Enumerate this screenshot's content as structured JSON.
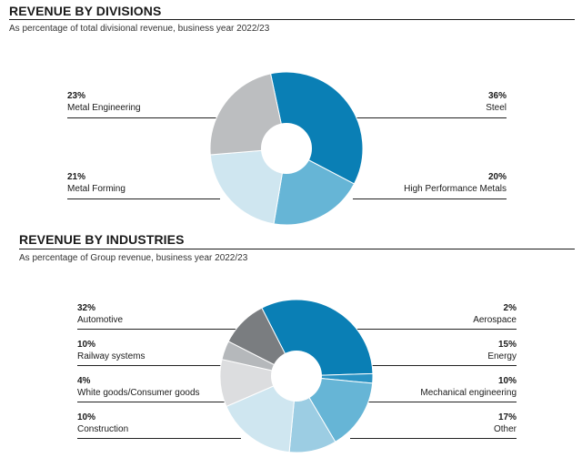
{
  "colors": {
    "text": "#1a1a1a",
    "hole": "#ffffff",
    "dark_blue": "#0a7fb5",
    "mid_blue": "#66b5d6",
    "light_blue": "#cfe6f0",
    "dark_gray": "#7a7d80",
    "mid_gray": "#b5b8bb",
    "light_gray": "#dcdddf"
  },
  "chart_data": [
    {
      "type": "pie",
      "variant": "donut",
      "title": "REVENUE BY DIVISIONS",
      "subtitle": "As percentage of total divisional revenue, business year 2022/23",
      "slices": [
        {
          "label": "Steel",
          "value": 36,
          "display": "36%",
          "color": "#0a7fb5",
          "side": "right"
        },
        {
          "label": "High Performance Metals",
          "value": 20,
          "display": "20%",
          "color": "#66b5d6",
          "side": "right"
        },
        {
          "label": "Metal Forming",
          "value": 21,
          "display": "21%",
          "color": "#cfe6f0",
          "side": "left"
        },
        {
          "label": "Metal Engineering",
          "value": 23,
          "display": "23%",
          "color": "#bcbec0",
          "side": "left"
        }
      ]
    },
    {
      "type": "pie",
      "variant": "donut",
      "title": "REVENUE BY INDUSTRIES",
      "subtitle": "As percentage of Group revenue, business year 2022/23",
      "slices": [
        {
          "label": "Automotive",
          "value": 32,
          "display": "32%",
          "color": "#0a7fb5",
          "side": "left"
        },
        {
          "label": "Aerospace",
          "value": 2,
          "display": "2%",
          "color": "#2a93c4",
          "side": "right"
        },
        {
          "label": "Energy",
          "value": 15,
          "display": "15%",
          "color": "#66b5d6",
          "side": "right"
        },
        {
          "label": "Mechanical engineering",
          "value": 10,
          "display": "10%",
          "color": "#9ccde3",
          "side": "right"
        },
        {
          "label": "Other",
          "value": 17,
          "display": "17%",
          "color": "#cfe6f0",
          "side": "right"
        },
        {
          "label": "Construction",
          "value": 10,
          "display": "10%",
          "color": "#dcdddf",
          "side": "left"
        },
        {
          "label": "White goods/Consumer goods",
          "value": 4,
          "display": "4%",
          "color": "#b5b8bb",
          "side": "left"
        },
        {
          "label": "Railway systems",
          "value": 10,
          "display": "10%",
          "color": "#7a7d80",
          "side": "left"
        }
      ]
    }
  ]
}
